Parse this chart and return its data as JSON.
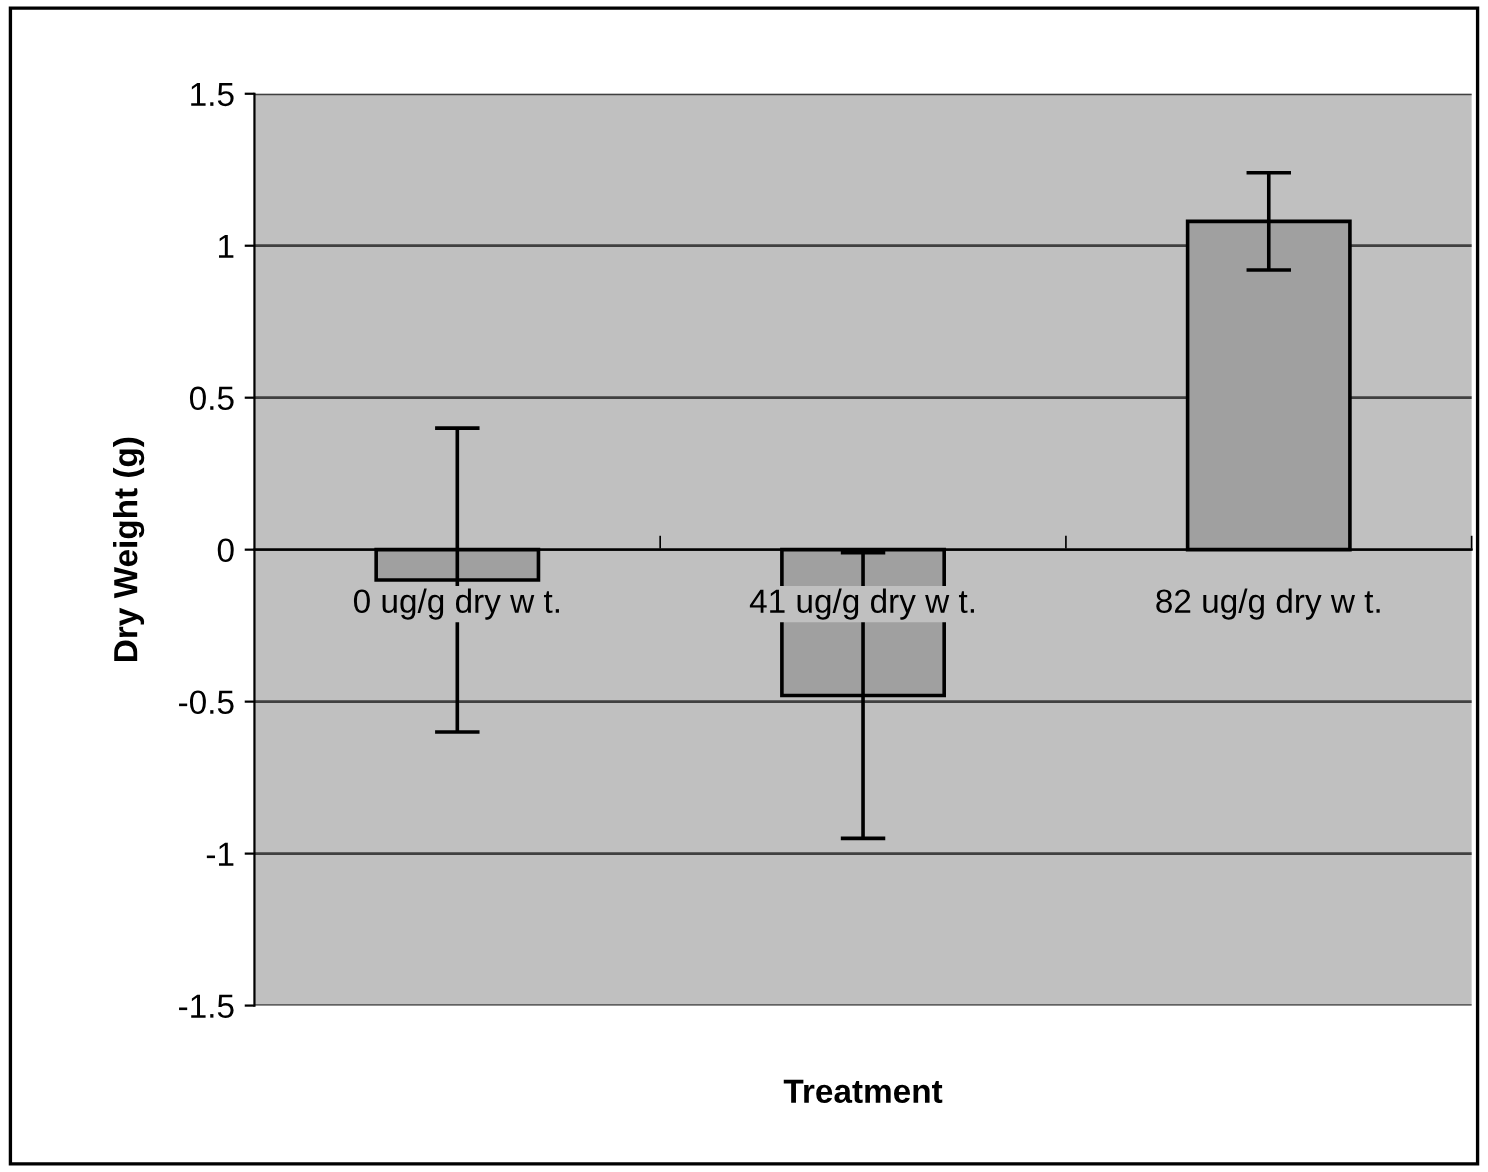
{
  "chart_data": {
    "type": "bar",
    "xlabel": "Treatment",
    "ylabel": "Dry Weight (g)",
    "categories": [
      "0 ug/g dry w t.",
      "41 ug/g dry w t.",
      "82 ug/g dry w t."
    ],
    "values": [
      -0.1,
      -0.48,
      1.08
    ],
    "errors": [
      0.5,
      0.47,
      0.16
    ],
    "color": "#a0a0a0",
    "ylim": [
      -1.5,
      1.5
    ],
    "yticks": [
      -1.5,
      -1,
      -0.5,
      0,
      0.5,
      1,
      1.5
    ],
    "grid": "y"
  }
}
